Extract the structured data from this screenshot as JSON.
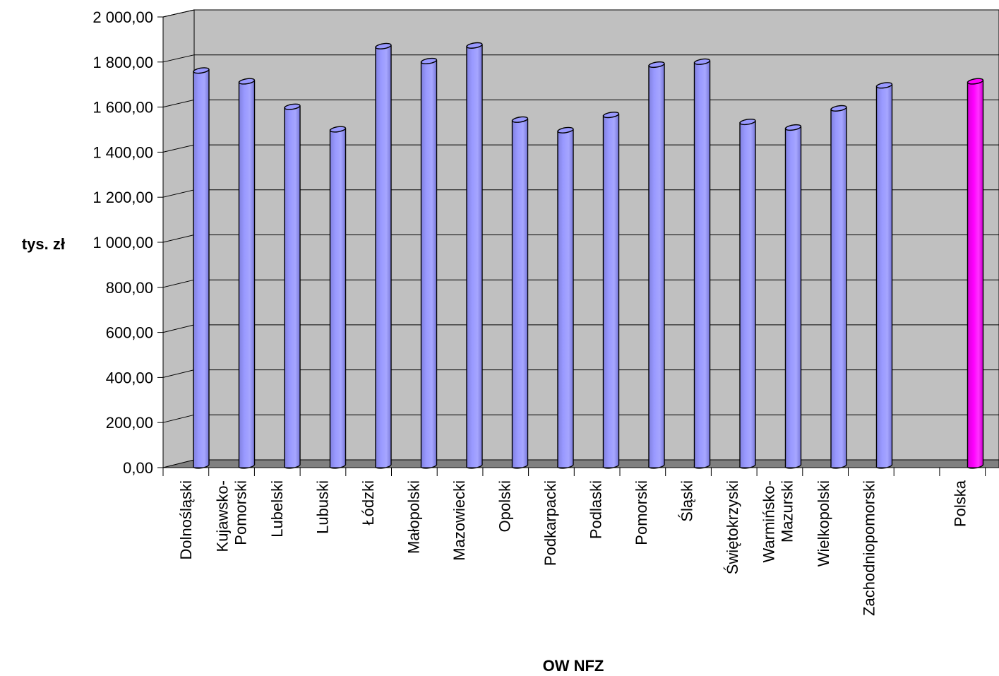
{
  "chart_data": {
    "type": "bar",
    "title": "",
    "xlabel": "OW NFZ",
    "ylabel": "tys. zł",
    "ylim": [
      0,
      2000
    ],
    "yticks": [
      "0,00",
      "200,00",
      "400,00",
      "600,00",
      "800,00",
      "1 000,00",
      "1 200,00",
      "1 400,00",
      "1 600,00",
      "1 800,00",
      "2 000,00"
    ],
    "grid": true,
    "legend": "none",
    "categories": [
      [
        "Dolnośląski"
      ],
      [
        "Kujawsko-",
        "Pomorski"
      ],
      [
        "Lubelski"
      ],
      [
        "Lubuski"
      ],
      [
        "Łódzki"
      ],
      [
        "Małopolski"
      ],
      [
        "Mazowiecki"
      ],
      [
        "Opolski"
      ],
      [
        "Podkarpacki"
      ],
      [
        "Podlaski"
      ],
      [
        "Pomorski"
      ],
      [
        "Śląski"
      ],
      [
        "Świętokrzyski"
      ],
      [
        "Warmińsko-",
        "Mazurski"
      ],
      [
        "Wielkopolski"
      ],
      [
        "Zachodniopomorski"
      ],
      [
        ""
      ],
      [
        "Polska"
      ]
    ],
    "values": [
      1753,
      1705,
      1592,
      1492,
      1861,
      1795,
      1864,
      1535,
      1488,
      1556,
      1779,
      1792,
      1525,
      1500,
      1585,
      1687,
      null,
      1705
    ],
    "colors": [
      "#9999ff",
      "#9999ff",
      "#9999ff",
      "#9999ff",
      "#9999ff",
      "#9999ff",
      "#9999ff",
      "#9999ff",
      "#9999ff",
      "#9999ff",
      "#9999ff",
      "#9999ff",
      "#9999ff",
      "#9999ff",
      "#9999ff",
      "#9999ff",
      "#9999ff",
      "#ff00ff"
    ],
    "wall_color": "#c0c0c0",
    "floor_color": "#808080"
  }
}
